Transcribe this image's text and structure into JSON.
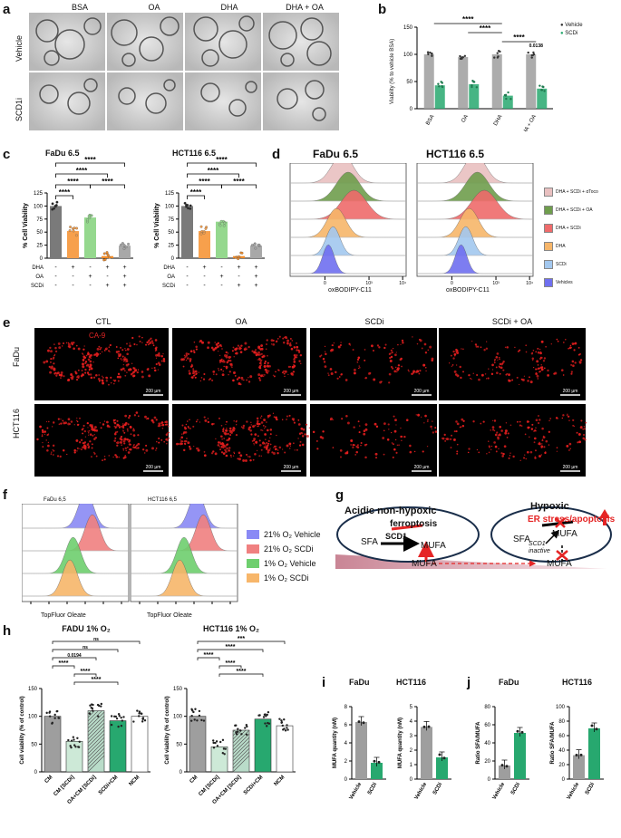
{
  "figure": {
    "panel_labels": {
      "a": "a",
      "b": "b",
      "c": "c",
      "d": "d",
      "e": "e",
      "f": "f",
      "g": "g",
      "h": "h",
      "i": "i",
      "j": "j"
    }
  },
  "panel_a": {
    "col_headers": [
      "BSA",
      "OA",
      "DHA",
      "DHA + OA"
    ],
    "row_labels": [
      "Vehicle",
      "SCD1i"
    ]
  },
  "panel_b": {
    "chart_data": {
      "type": "bar",
      "ylabel": "Viability (% to vehicle BSA)",
      "categories": [
        "BSA",
        "OA",
        "DHA",
        "DHA + OA"
      ],
      "ylim": [
        0,
        150
      ],
      "yticks": [
        "0",
        "50",
        "100",
        "150"
      ],
      "series": [
        {
          "name": "Vehicle",
          "values": [
            100,
            95,
            100,
            100
          ],
          "color": "#9e9e9e"
        },
        {
          "name": "SCDi",
          "values": [
            43,
            45,
            24,
            37
          ],
          "color": "#27a86f"
        }
      ],
      "annotations": [
        "****",
        "****",
        "****",
        "0.0138"
      ]
    }
  },
  "panel_c": {
    "charts": [
      {
        "title": "FaDu 6.5",
        "values": [
          100,
          52,
          78,
          4,
          24
        ],
        "sig": [
          "****",
          "****",
          "****",
          "****",
          "****"
        ]
      },
      {
        "title": "HCT116 6.5",
        "values": [
          100,
          52,
          70,
          4,
          24
        ],
        "sig": [
          "****",
          "****",
          "****",
          "****",
          "****"
        ]
      }
    ],
    "ylabel": "% Cell Viability",
    "yticks": [
      "0",
      "25",
      "50",
      "75",
      "100",
      "125"
    ],
    "row_labels": [
      "DHA",
      "OA",
      "SCDi"
    ],
    "signs": [
      [
        "-",
        "+",
        "-",
        "+",
        "+"
      ],
      [
        "-",
        "-",
        "+",
        "-",
        "+"
      ],
      [
        "-",
        "-",
        "-",
        "+",
        "+"
      ]
    ],
    "colors": [
      "#7a7a7a",
      "#f7a04c",
      "#95d88e",
      "#f28d2a",
      "#a8a8a8"
    ]
  },
  "panel_d": {
    "titles": [
      "FaDu 6.5",
      "HCT116 6.5"
    ],
    "xlabel": "oxBODIPY-C11",
    "legend": [
      "DHA + SCDi + αToco",
      "DHA + SCDi + OA",
      "DHA + SCDi",
      "DHA",
      "SCDi",
      "Vehicles"
    ],
    "colors": [
      "#e9c0c0",
      "#6f9e4d",
      "#ef6b6b",
      "#f7b66a",
      "#a3c8ef",
      "#6f6ff0"
    ],
    "ticks": [
      "0",
      "10³",
      "10⁴"
    ]
  },
  "panel_e": {
    "col_headers": [
      "CTL",
      "OA",
      "SCDi",
      "SCDi + OA"
    ],
    "row_labels": [
      "FaDu",
      "HCT116"
    ],
    "stain_label": "CA-9",
    "scale_bar": "200 µm"
  },
  "panel_f": {
    "titles": [
      "FaDu 6,5",
      "HCT116 6,5"
    ],
    "xlabel": "TopFluor Oleate",
    "legend": [
      "21% O₂ Vehicle",
      "21% O₂ SCDi",
      "1% O₂ Vehicle",
      "1% O₂ SCDi"
    ],
    "colors": [
      "#8a8af5",
      "#f08080",
      "#6ecf6e",
      "#f7b66a"
    ]
  },
  "panel_g": {
    "left_title": "Acidic non-hypoxic",
    "right_title": "Hypoxic",
    "ferroptosis": "ferroptosis",
    "er_stress": "ER stress/apoptosis",
    "sfa": "SFA",
    "scd1": "SCD1",
    "mufa": "MUFA",
    "scd1_inactive_1": "SCD1",
    "scd1_inactive_2": "inactive",
    "mufa_bottom_left": "MUFA",
    "mufa_bottom_right": "MUFA"
  },
  "panel_h": {
    "charts": [
      {
        "title": "FADU 1% O₂",
        "values": [
          100,
          55,
          110,
          92,
          100
        ],
        "pvals": [
          "ns",
          "ns",
          "0.0194",
          "****",
          "****",
          "****"
        ]
      },
      {
        "title": "HCT116 1% O₂",
        "values": [
          100,
          45,
          75,
          95,
          83
        ],
        "pvals": [
          "***",
          "****",
          "****",
          "****",
          "****"
        ]
      }
    ],
    "ylabel": "Cell viability (% of control)",
    "categories": [
      "CM",
      "CM [SCDi]",
      "OA+CM [SCDi]",
      "SCDi+CM",
      "NCM"
    ],
    "yticks": [
      "0",
      "50",
      "100",
      "150"
    ]
  },
  "panel_i": {
    "ylabel": "MUFA quantity (nM)",
    "charts": [
      {
        "title": "FaDu",
        "values": [
          6.3,
          1.8
        ],
        "yticks": [
          "0",
          "2",
          "4",
          "6",
          "8"
        ],
        "ymax": 8
      },
      {
        "title": "HCT116",
        "values": [
          3.6,
          1.5
        ],
        "yticks": [
          "0",
          "1",
          "2",
          "3",
          "4",
          "5"
        ],
        "ymax": 5
      }
    ],
    "categories": [
      "Vehicle",
      "SCDi"
    ]
  },
  "panel_j": {
    "ylabel": "Ratio SFA/MUFA",
    "charts": [
      {
        "title": "FaDu",
        "values": [
          15,
          51
        ],
        "yticks": [
          "0",
          "20",
          "40",
          "60",
          "80"
        ],
        "ymax": 80
      },
      {
        "title": "HCT116",
        "values": [
          33,
          70
        ],
        "yticks": [
          "0",
          "20",
          "40",
          "60",
          "80",
          "100"
        ],
        "ymax": 100
      }
    ],
    "categories": [
      "Vehicle",
      "SCDi"
    ]
  }
}
